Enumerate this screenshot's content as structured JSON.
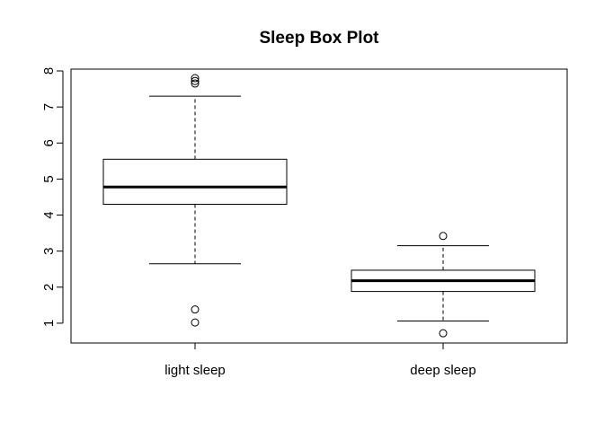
{
  "chart_data": {
    "type": "boxplot",
    "title": "Sleep Box Plot",
    "xlabel": "",
    "ylabel": "",
    "ylim": [
      0.45,
      8.05
    ],
    "y_ticks": [
      1,
      2,
      3,
      4,
      5,
      6,
      7,
      8
    ],
    "grid": false,
    "categories": [
      "light sleep",
      "deep sleep"
    ],
    "boxes": [
      {
        "label": "light sleep",
        "whisker_low": 2.65,
        "q1": 4.3,
        "median": 4.78,
        "q3": 5.55,
        "whisker_high": 7.3,
        "outliers": [
          1.02,
          1.38,
          7.65,
          7.72,
          7.8
        ]
      },
      {
        "label": "deep sleep",
        "whisker_low": 1.06,
        "q1": 1.88,
        "median": 2.18,
        "q3": 2.47,
        "whisker_high": 3.15,
        "outliers": [
          0.72,
          3.42
        ]
      }
    ]
  }
}
